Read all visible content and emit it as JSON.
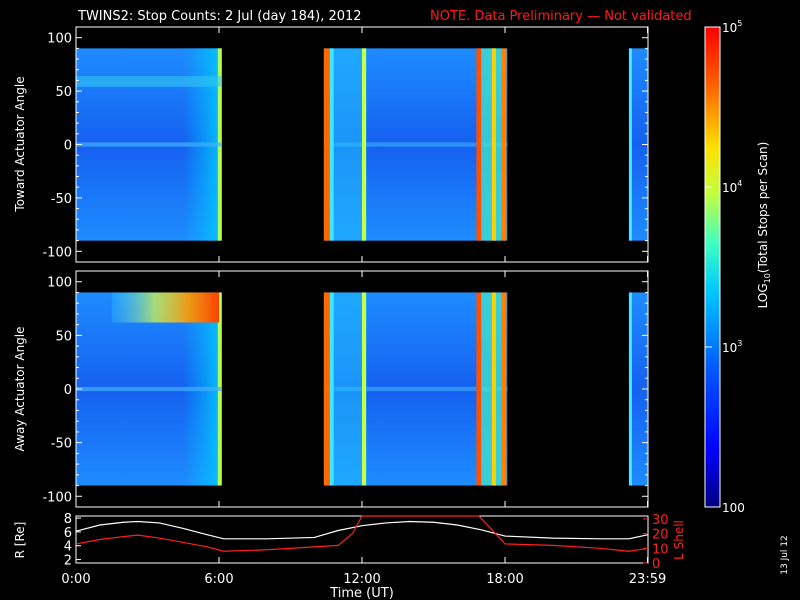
{
  "header": {
    "title": "TWINS2: Stop Counts:  2 Jul (day 184), 2012",
    "note": "NOTE. Data Preliminary — Not validated"
  },
  "colors": {
    "background": "#000000",
    "axes": "#ffffff",
    "note": "#ff1a1a",
    "r_line": "#ffffff",
    "lshell_line": "#ff2020"
  },
  "footer": {
    "date_stamp": "13 Jul 12"
  },
  "chart_data": [
    {
      "type": "heatmap",
      "ylabel": "Toward Actuator Angle",
      "yticks": [
        "100",
        "50",
        "0",
        "-50",
        "-100"
      ],
      "ylim": [
        -110,
        110
      ],
      "xlim": [
        0,
        24
      ],
      "data_gaps_hours": [
        [
          6.1,
          10.4
        ],
        [
          18.1,
          23.2
        ]
      ],
      "dominant_level": "~1e3"
    },
    {
      "type": "heatmap",
      "ylabel": "Away Actuator Angle",
      "yticks": [
        "100",
        "50",
        "0",
        "-50",
        "-100"
      ],
      "ylim": [
        -110,
        110
      ],
      "xlim": [
        0,
        24
      ],
      "data_gaps_hours": [
        [
          6.1,
          10.4
        ],
        [
          18.1,
          23.2
        ]
      ],
      "dominant_level": "~1e3"
    },
    {
      "type": "line",
      "ylabel_left": "R [Re]",
      "ylabel_right": "L Shell",
      "yticks_left": [
        "8",
        "6",
        "4",
        "2"
      ],
      "yticks_right": [
        "30",
        "20",
        "10",
        "0"
      ],
      "ylim_left": [
        1.5,
        8.3
      ],
      "ylim_right": [
        0,
        32
      ],
      "xlabel": "Time (UT)",
      "xtick_labels": [
        "0:00",
        "6:00",
        "12:00",
        "18:00",
        "23:59"
      ],
      "xticks_hours": [
        0,
        6,
        12,
        18,
        23.98
      ],
      "series": [
        {
          "name": "R [Re]",
          "x": [
            0,
            1,
            2,
            2.6,
            3.5,
            4.5,
            5.5,
            6.2,
            8,
            10,
            11,
            12,
            13,
            14,
            15,
            16,
            17,
            18,
            20,
            22,
            23.2,
            24
          ],
          "y": [
            6.1,
            7.0,
            7.4,
            7.5,
            7.3,
            6.5,
            5.6,
            5.0,
            5.0,
            5.2,
            6.2,
            6.9,
            7.3,
            7.5,
            7.4,
            7.0,
            6.3,
            5.4,
            5.1,
            5.0,
            5.0,
            5.6
          ]
        },
        {
          "name": "L Shell",
          "x": [
            0,
            1,
            2,
            2.6,
            3.5,
            4.5,
            5.5,
            6.2,
            8,
            10,
            11,
            11.6,
            12,
            16.9,
            17.2,
            18,
            20,
            22,
            23.2,
            24
          ],
          "y": [
            13,
            16,
            18,
            19,
            17,
            14,
            11,
            8,
            9,
            11,
            12,
            20,
            32,
            32,
            27,
            13,
            12,
            10,
            8,
            10
          ]
        }
      ]
    }
  ],
  "colorbar": {
    "label": "LOG10(Total Stops per Scan)",
    "label_main": "LOG",
    "label_sub": "10",
    "label_rest": "(Total Stops per Scan)",
    "ticks": [
      {
        "base": "10",
        "exp": "5",
        "level": 5
      },
      {
        "base": "10",
        "exp": "4",
        "level": 4
      },
      {
        "base": "10",
        "exp": "3",
        "level": 3
      },
      {
        "base": "100",
        "exp": "",
        "level": 2
      }
    ],
    "range": [
      2,
      5
    ]
  }
}
